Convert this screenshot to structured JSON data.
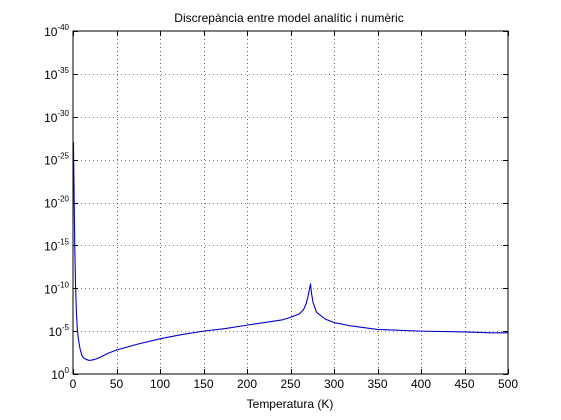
{
  "chart_data": {
    "type": "line",
    "title": "Discrepància entre model analític i numèric",
    "xlabel": "Temperatura (K)",
    "ylabel": "",
    "xlim": [
      0,
      500
    ],
    "ylim_log10": [
      -40,
      0
    ],
    "y_scale": "log",
    "grid": true,
    "grid_style": "dotted",
    "legend": "none",
    "x_ticks": [
      0,
      50,
      100,
      150,
      200,
      250,
      300,
      350,
      400,
      450,
      500
    ],
    "x_tick_labels": [
      "0",
      "50",
      "100",
      "150",
      "200",
      "250",
      "300",
      "350",
      "400",
      "450",
      "500"
    ],
    "y_ticks_log10": [
      0,
      -5,
      -10,
      -15,
      -20,
      -25,
      -30,
      -35,
      -40
    ],
    "y_tick_labels": [
      {
        "base": "10",
        "exp": "0"
      },
      {
        "base": "10",
        "exp": "-5"
      },
      {
        "base": "10",
        "exp": "-10"
      },
      {
        "base": "10",
        "exp": "-15"
      },
      {
        "base": "10",
        "exp": "-20"
      },
      {
        "base": "10",
        "exp": "-25"
      },
      {
        "base": "10",
        "exp": "-30"
      },
      {
        "base": "10",
        "exp": "-35"
      },
      {
        "base": "10",
        "exp": "-40"
      }
    ],
    "series": [
      {
        "color": "#0000cc",
        "x": [
          0.5,
          1,
          2,
          3,
          4,
          5,
          6,
          8,
          10,
          12,
          15,
          18,
          20,
          25,
          30,
          40,
          50,
          75,
          100,
          125,
          150,
          175,
          200,
          220,
          240,
          250,
          260,
          265,
          268,
          270,
          272,
          273,
          274,
          276,
          280,
          290,
          300,
          320,
          350,
          400,
          450,
          480,
          500
        ],
        "log10_y": [
          -27,
          -23,
          -15,
          -10,
          -7,
          -5.2,
          -4.2,
          -3.0,
          -2.2,
          -1.9,
          -1.7,
          -1.6,
          -1.6,
          -1.7,
          -1.9,
          -2.4,
          -2.8,
          -3.5,
          -4.1,
          -4.6,
          -5.0,
          -5.3,
          -5.7,
          -6.0,
          -6.3,
          -6.6,
          -7.0,
          -7.5,
          -8.2,
          -9.0,
          -10.0,
          -10.5,
          -9.5,
          -8.3,
          -7.2,
          -6.4,
          -6.0,
          -5.6,
          -5.2,
          -5.0,
          -4.9,
          -4.8,
          -4.8
        ]
      }
    ]
  }
}
